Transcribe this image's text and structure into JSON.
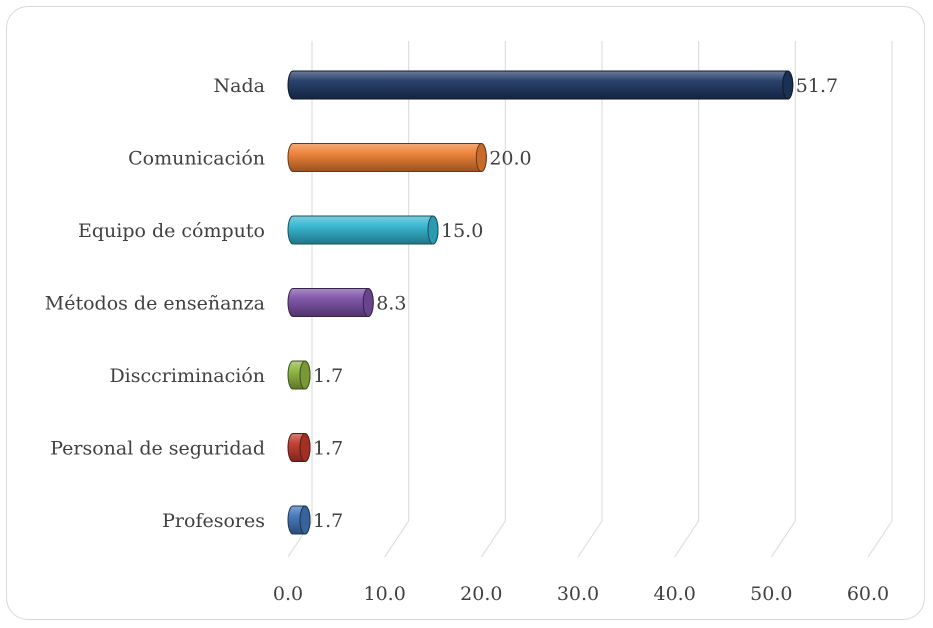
{
  "chart_data": {
    "type": "bar",
    "orientation": "horizontal",
    "style": "3d-cylinder",
    "categories": [
      "Nada",
      "Comunicación",
      "Equipo de cómputo",
      "Métodos de enseñanza",
      "Disccriminación",
      "Personal de seguridad",
      "Profesores"
    ],
    "values": [
      51.7,
      20.0,
      15.0,
      8.3,
      1.7,
      1.7,
      1.7
    ],
    "value_labels": [
      "51.7",
      "20.0",
      "15.0",
      "8.3",
      "1.7",
      "1.7",
      "1.7"
    ],
    "colors": [
      "#1f3864",
      "#ed7d31",
      "#31b4d0",
      "#7b4fa6",
      "#8db43e",
      "#c0392b",
      "#3f74b8"
    ],
    "xlim": [
      0,
      60
    ],
    "xticks": [
      0,
      10,
      20,
      30,
      40,
      50,
      60
    ],
    "xtick_labels": [
      "0.0",
      "10.0",
      "20.0",
      "30.0",
      "40.0",
      "50.0",
      "60.0"
    ],
    "grid": true,
    "legend": "none"
  }
}
